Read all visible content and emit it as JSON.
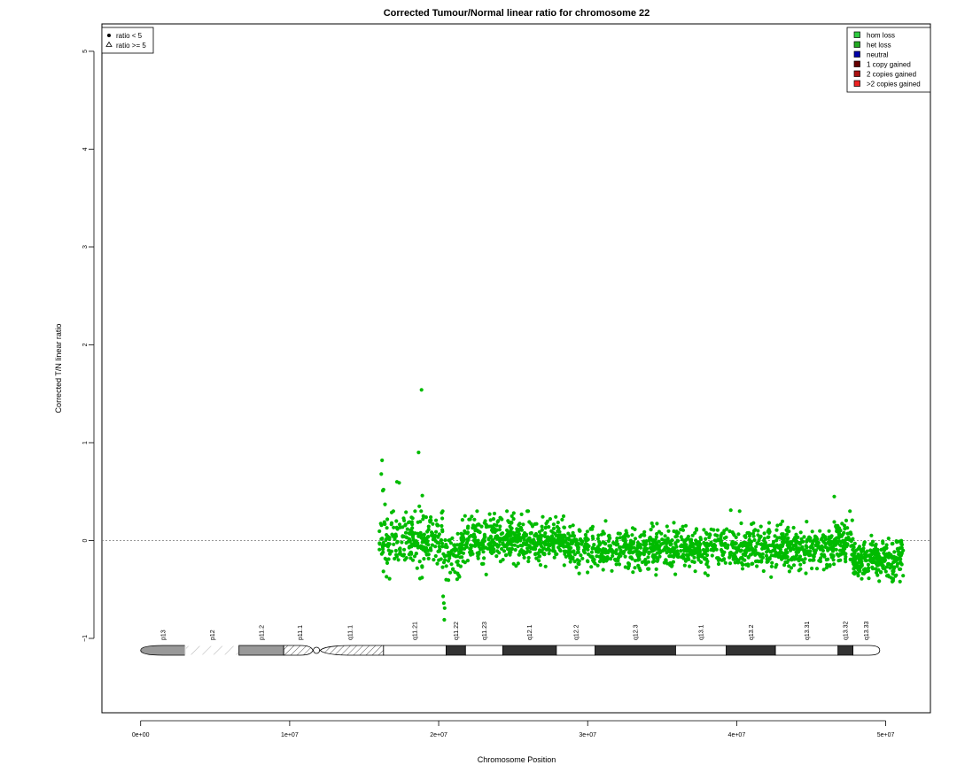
{
  "chart_data": {
    "type": "scatter",
    "title": "Corrected Tumour/Normal linear ratio for chromosome  22",
    "xlabel": "Chromosome Position",
    "ylabel": "Corrected T/N linear ratio",
    "xlim": [
      -2600000,
      53000000
    ],
    "ylim": [
      -1.76,
      5.28
    ],
    "x_ticks": [
      0,
      10000000,
      20000000,
      30000000,
      40000000,
      50000000
    ],
    "x_tick_labels": [
      "0e+00",
      "1e+07",
      "2e+07",
      "3e+07",
      "4e+07",
      "5e+07"
    ],
    "y_ticks": [
      -1,
      0,
      1,
      2,
      3,
      4,
      5
    ],
    "y_tick_labels": [
      "−1",
      "0",
      "1",
      "2",
      "3",
      "4",
      "5"
    ],
    "reference_line_y": 0,
    "shape_legend": {
      "position": "top-left",
      "entries": [
        {
          "label": "ratio < 5",
          "marker": "filled-circle"
        },
        {
          "label": "ratio >= 5",
          "marker": "triangle"
        }
      ]
    },
    "state_legend": {
      "position": "top-right",
      "entries": [
        {
          "label": "hom loss",
          "color": "#2ecc40"
        },
        {
          "label": "het loss",
          "color": "#22aa22"
        },
        {
          "label": "neutral",
          "color": "#0000aa"
        },
        {
          "label": "1 copy gained",
          "color": "#660000"
        },
        {
          "label": "2 copies gained",
          "color": "#aa1111"
        },
        {
          "label": ">2 copies gained",
          "color": "#ee2222"
        }
      ]
    },
    "series": [
      {
        "color": "#00bb00",
        "point_density_profile": [
          {
            "x_start": 16000000,
            "x_end": 20500000,
            "mean": 0.0,
            "sd": 0.13,
            "count": 240
          },
          {
            "x_start": 20500000,
            "x_end": 21500000,
            "mean": -0.12,
            "sd": 0.1,
            "count": 50
          },
          {
            "x_start": 21500000,
            "x_end": 28500000,
            "mean": 0.0,
            "sd": 0.11,
            "count": 500
          },
          {
            "x_start": 28500000,
            "x_end": 46500000,
            "mean": -0.08,
            "sd": 0.1,
            "count": 1100
          },
          {
            "x_start": 46500000,
            "x_end": 47800000,
            "mean": -0.02,
            "sd": 0.11,
            "count": 90
          },
          {
            "x_start": 47800000,
            "x_end": 51200000,
            "mean": -0.2,
            "sd": 0.09,
            "count": 270
          }
        ],
        "outliers": [
          {
            "x": 16200000,
            "y": 0.82
          },
          {
            "x": 16150000,
            "y": 0.68
          },
          {
            "x": 16300000,
            "y": 0.52
          },
          {
            "x": 16250000,
            "y": 0.51
          },
          {
            "x": 16400000,
            "y": 0.37
          },
          {
            "x": 17200000,
            "y": 0.6
          },
          {
            "x": 17350000,
            "y": 0.59
          },
          {
            "x": 18650000,
            "y": 0.9
          },
          {
            "x": 18850000,
            "y": 1.54
          },
          {
            "x": 18900000,
            "y": 0.46
          },
          {
            "x": 18700000,
            "y": 0.35
          },
          {
            "x": 20300000,
            "y": -0.57
          },
          {
            "x": 20350000,
            "y": -0.64
          },
          {
            "x": 20400000,
            "y": -0.69
          },
          {
            "x": 20380000,
            "y": -0.81
          },
          {
            "x": 20500000,
            "y": -0.4
          },
          {
            "x": 16700000,
            "y": -0.39
          },
          {
            "x": 16500000,
            "y": -0.37
          },
          {
            "x": 46550000,
            "y": 0.45
          },
          {
            "x": 39600000,
            "y": 0.31
          },
          {
            "x": 40200000,
            "y": 0.3
          },
          {
            "x": 47600000,
            "y": 0.3
          }
        ]
      }
    ],
    "ideogram": {
      "bands": [
        {
          "name": "p13",
          "start": 0,
          "end": 3000000,
          "style": "gray"
        },
        {
          "name": "p12",
          "start": 3000000,
          "end": 6600000,
          "style": "stripe-light"
        },
        {
          "name": "p11.2",
          "start": 6600000,
          "end": 9600000,
          "style": "gray"
        },
        {
          "name": "p11.1",
          "start": 9600000,
          "end": 11800000,
          "style": "stripe"
        },
        {
          "name": "q11.1",
          "start": 11800000,
          "end": 16300000,
          "style": "stripe"
        },
        {
          "name": "q11.21",
          "start": 16300000,
          "end": 20500000,
          "style": "white"
        },
        {
          "name": "q11.22",
          "start": 20500000,
          "end": 21800000,
          "style": "dark"
        },
        {
          "name": "q11.23",
          "start": 21800000,
          "end": 24300000,
          "style": "white"
        },
        {
          "name": "q12.1",
          "start": 24300000,
          "end": 27900000,
          "style": "dark"
        },
        {
          "name": "q12.2",
          "start": 27900000,
          "end": 30500000,
          "style": "white"
        },
        {
          "name": "q12.3",
          "start": 30500000,
          "end": 35900000,
          "style": "dark"
        },
        {
          "name": "q13.1",
          "start": 35900000,
          "end": 39300000,
          "style": "white"
        },
        {
          "name": "q13.2",
          "start": 39300000,
          "end": 42600000,
          "style": "dark"
        },
        {
          "name": "q13.31",
          "start": 42600000,
          "end": 46800000,
          "style": "white"
        },
        {
          "name": "q13.32",
          "start": 46800000,
          "end": 47800000,
          "style": "dark"
        },
        {
          "name": "q13.33",
          "start": 47800000,
          "end": 49600000,
          "style": "white"
        }
      ]
    }
  }
}
